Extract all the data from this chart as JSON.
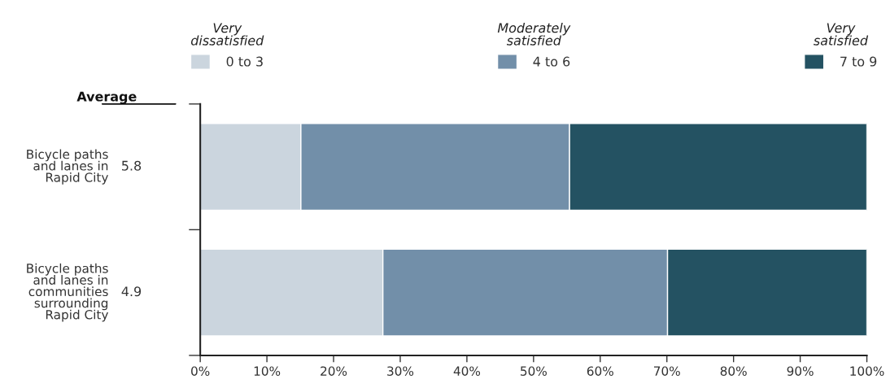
{
  "chart_data": {
    "type": "bar",
    "orientation": "horizontal",
    "stacked": true,
    "categories": [
      "Bicycle paths\nand lanes in\nRapid City",
      "Bicycle paths\nand lanes in\ncommunities\nsurrounding\nRapid City"
    ],
    "series": [
      {
        "name": "0 to 3",
        "color": "#cbd5de",
        "values": [
          15.1,
          27.4
        ]
      },
      {
        "name": "4 to 6",
        "color": "#728fa9",
        "values": [
          40.3,
          42.7
        ]
      },
      {
        "name": "7 to 9",
        "color": "#245262",
        "values": [
          44.6,
          29.9
        ]
      }
    ],
    "xlim": [
      0,
      100
    ],
    "xticks": [
      {
        "value": 0,
        "label": "0%"
      },
      {
        "value": 10,
        "label": "10%"
      },
      {
        "value": 20,
        "label": "20%"
      },
      {
        "value": 30,
        "label": "30%"
      },
      {
        "value": 40,
        "label": "40%"
      },
      {
        "value": 50,
        "label": "50%"
      },
      {
        "value": 60,
        "label": "60%"
      },
      {
        "value": 70,
        "label": "70%"
      },
      {
        "value": 80,
        "label": "80%"
      },
      {
        "value": 90,
        "label": "90%"
      },
      {
        "value": 100,
        "label": "100%"
      }
    ],
    "legend": "top",
    "legend_title": "Average",
    "annotations": [
      "Very\ndissatisfied",
      "Moderately\nsatisfied",
      "Very\nsatisfied",
      "5.8",
      "4.9"
    ],
    "grid": false
  }
}
